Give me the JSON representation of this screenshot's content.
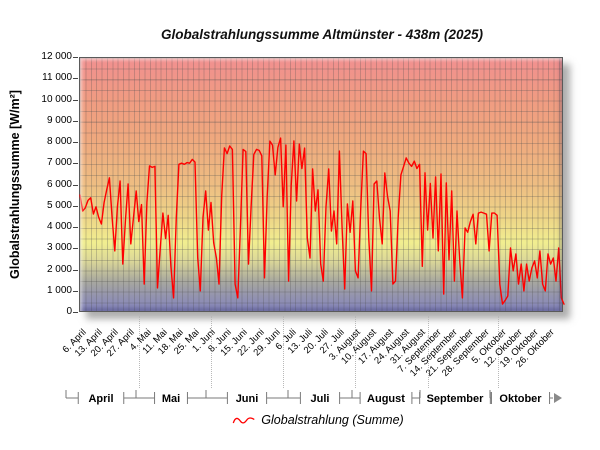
{
  "chart_data": {
    "type": "line",
    "title": "Globalstrahlungssumme Altmünster - 438m (2025)",
    "ylabel": "Globalstrahlungssumme [W/m²]",
    "ylim": [
      0,
      12000
    ],
    "y_tick_step": 1000,
    "y_minor_grid_step": 500,
    "grid": true,
    "legend_position": "bottom",
    "y_ticks": [
      "12 000",
      "11 000",
      "10 000",
      "9 000",
      "8 000",
      "7 000",
      "6 000",
      "5 000",
      "4 000",
      "3 000",
      "2 000",
      "1 000",
      "0"
    ],
    "x_tick_labels": [
      "6. April",
      "13. April",
      "20. April",
      "27. April",
      "4. Mai",
      "11. Mai",
      "18. Mai",
      "25. Mai",
      "1. Juni",
      "8. Juni",
      "15. Juni",
      "22. Juni",
      "29. Juni",
      "6. Juli",
      "13. Juli",
      "20. Juli",
      "27. Juli",
      "3. August",
      "10. August",
      "17. August",
      "24. August",
      "31. August",
      "7. September",
      "14. September",
      "21. September",
      "28. September",
      "5. Oktober",
      "12. Oktober",
      "19. Oktober",
      "26. Oktober"
    ],
    "month_groups": [
      "April",
      "Mai",
      "Juni",
      "Juli",
      "August",
      "September",
      "Oktober"
    ],
    "plot_background_gradient": [
      "#F19090",
      "#EFA87E",
      "#EED788",
      "#F1EE90",
      "#A9A99E",
      "#8585BF"
    ],
    "series": [
      {
        "name": "Globalstrahlung (Summe)",
        "color": "#FF0000",
        "values": [
          5550,
          4800,
          4950,
          5300,
          5420,
          4660,
          5000,
          4500,
          4190,
          5200,
          5800,
          6360,
          4500,
          2920,
          5000,
          6210,
          2300,
          4400,
          6070,
          3250,
          4500,
          5740,
          4300,
          5100,
          1360,
          5200,
          6920,
          6850,
          6900,
          1180,
          3000,
          4700,
          3500,
          4600,
          2200,
          710,
          4500,
          7000,
          7050,
          7000,
          7080,
          7050,
          7230,
          7100,
          2600,
          1040,
          4500,
          5740,
          3900,
          5200,
          3300,
          2590,
          1360,
          5500,
          7770,
          7500,
          7860,
          7700,
          1360,
          710,
          4000,
          7700,
          7600,
          2300,
          5000,
          7460,
          7700,
          7650,
          7400,
          1650,
          5500,
          8090,
          7900,
          6500,
          7800,
          8230,
          5000,
          7900,
          1500,
          6000,
          8100,
          5270,
          7950,
          6800,
          7760,
          3530,
          2590,
          6780,
          4800,
          5800,
          2300,
          1500,
          5000,
          6780,
          3860,
          4800,
          3250,
          7620,
          4000,
          1130,
          5130,
          3800,
          5270,
          1980,
          1650,
          5000,
          7620,
          7500,
          3500,
          1040,
          6070,
          6210,
          4470,
          3250,
          6590,
          5500,
          4800,
          1360,
          1500,
          4500,
          6500,
          6900,
          7300,
          7050,
          6900,
          7150,
          6800,
          7000,
          2200,
          6600,
          3900,
          6100,
          3530,
          6400,
          2920,
          6540,
          890,
          6120,
          2500,
          5740,
          1500,
          4800,
          2500,
          710,
          4000,
          3800,
          4300,
          4650,
          3250,
          4700,
          4750,
          4700,
          4650,
          2920,
          4700,
          4700,
          4600,
          1360,
          420,
          600,
          800,
          3060,
          1980,
          2780,
          1360,
          2300,
          1040,
          2300,
          1500,
          2120,
          2450,
          1650,
          2920,
          1360,
          1040,
          2780,
          2300,
          2590,
          1500,
          3060,
          710,
          420
        ]
      }
    ]
  },
  "legend": {
    "label": "Globalstrahlung (Summe)"
  },
  "nav": {
    "pan_arrow": "right"
  }
}
